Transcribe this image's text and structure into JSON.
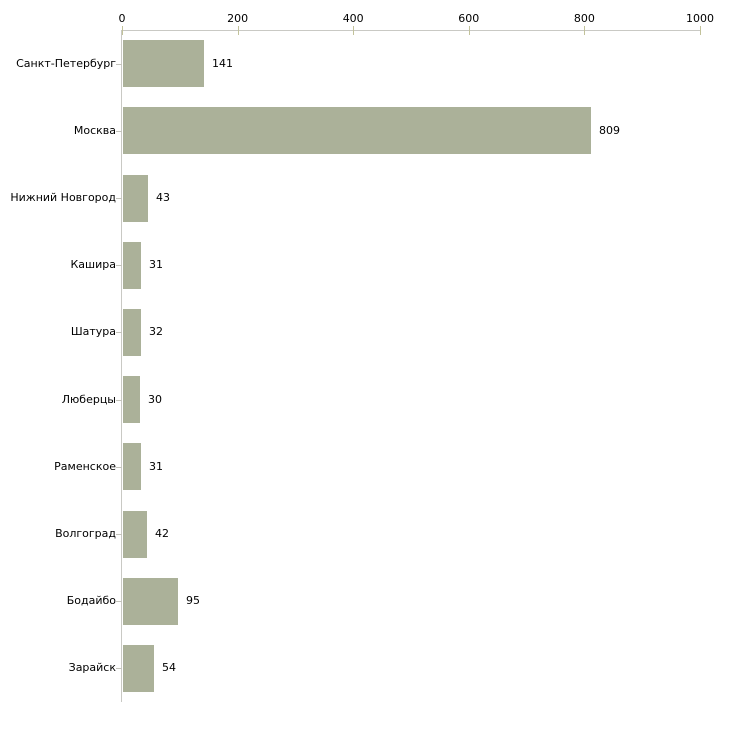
{
  "chart_data": {
    "type": "bar",
    "orientation": "horizontal",
    "title": "",
    "xlabel": "",
    "ylabel": "",
    "categories": [
      "Санкт-Петербург",
      "Москва",
      "Нижний Новгород",
      "Кашира",
      "Шатура",
      "Люберцы",
      "Раменское",
      "Волгоград",
      "Бодайбо",
      "Зарайск"
    ],
    "values": [
      141,
      809,
      43,
      31,
      32,
      30,
      31,
      42,
      95,
      54
    ],
    "value_labels": [
      "141",
      "809",
      "43",
      "31",
      "32",
      "30",
      "31",
      "42",
      "95",
      "54"
    ],
    "xlim": [
      0,
      1000
    ],
    "x_ticks": [
      "0",
      "200",
      "400",
      "600",
      "800",
      "1000"
    ],
    "x_tick_values": [
      0,
      200,
      400,
      600,
      800,
      1000
    ],
    "axis_position": "top",
    "grid": false,
    "legend_position": "none",
    "colors": {
      "bar_fill": "#ABB199",
      "axis_line": "#C9C9C4",
      "tick_mark": "#C2C29A",
      "category_dash": "#C4C4BC",
      "text": "#000000"
    }
  }
}
